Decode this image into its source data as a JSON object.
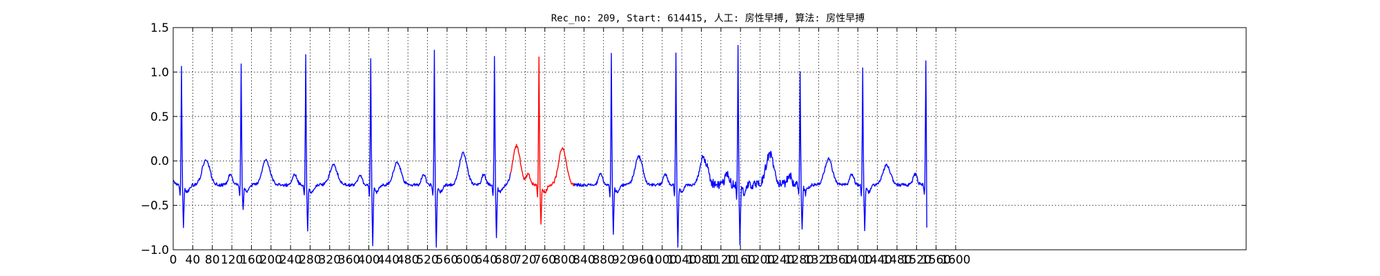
{
  "chart_data": {
    "type": "line",
    "title": "Rec_no: 209, Start: 614415, 人工: 房性早搏, 算法: 房性早搏",
    "xlabel": "",
    "ylabel": "",
    "xlim": [
      0,
      1600
    ],
    "ylim": [
      -1.0,
      1.5
    ],
    "grid": true,
    "yticks": [
      -1.0,
      -0.5,
      0.0,
      0.5,
      1.0,
      1.5
    ],
    "ytick_labels": [
      "−1.0",
      "−0.5",
      "0.0",
      "0.5",
      "1.0",
      "1.5"
    ],
    "xticks": [
      0,
      40,
      80,
      120,
      160,
      200,
      240,
      280,
      320,
      360,
      400,
      440,
      480,
      520,
      560,
      600,
      640,
      680,
      720,
      760,
      800,
      840,
      880,
      920,
      960,
      1000,
      1040,
      1080,
      1120,
      1160,
      1200,
      1240,
      1280,
      1320,
      1360,
      1400,
      1440,
      1480,
      1520,
      1560,
      1600
    ],
    "xtick_labels": [
      "0",
      "40",
      "80",
      "120",
      "160",
      "200",
      "240",
      "280",
      "320",
      "360",
      "400",
      "440",
      "480",
      "520",
      "560",
      "600",
      "640",
      "680",
      "720",
      "760",
      "800",
      "840",
      "880",
      "920",
      "960",
      "1000",
      "1040",
      "1080",
      "1120",
      "1160",
      "1200",
      "1240",
      "1280",
      "1320",
      "1360",
      "1400",
      "1440",
      "1480",
      "1520",
      "1560",
      "1600"
    ],
    "x_tick_max_sample": 1600,
    "series_colors": {
      "normal": "#0000ff",
      "highlight": "#ff0000"
    },
    "beats": [
      {
        "r_x": 17,
        "r_y": 1.05,
        "s_y": -0.75,
        "t_x": 67,
        "t_y": 0.02
      },
      {
        "r_x": 139,
        "r_y": 1.1,
        "s_y": -0.55,
        "t_x": 190,
        "t_y": 0.01
      },
      {
        "r_x": 271,
        "r_y": 1.2,
        "s_y": -0.8,
        "t_x": 328,
        "t_y": -0.05
      },
      {
        "r_x": 404,
        "r_y": 1.16,
        "s_y": -0.95,
        "t_x": 458,
        "t_y": -0.02
      },
      {
        "r_x": 534,
        "r_y": 1.24,
        "s_y": -0.98,
        "t_x": 593,
        "t_y": 0.09
      },
      {
        "r_x": 657,
        "r_y": 1.18,
        "s_y": -0.88,
        "t_x": 702,
        "t_y": 0.17
      },
      {
        "r_x": 748,
        "r_y": 1.17,
        "s_y": -0.72,
        "t_x": 796,
        "t_y": 0.14
      },
      {
        "r_x": 896,
        "r_y": 1.2,
        "s_y": -0.82,
        "t_x": 952,
        "t_y": 0.05
      },
      {
        "r_x": 1028,
        "r_y": 1.2,
        "s_y": -0.97,
        "t_x": 1085,
        "t_y": 0.04
      },
      {
        "r_x": 1155,
        "r_y": 1.25,
        "s_y": -0.9,
        "t_x": 1220,
        "t_y": 0.08
      },
      {
        "r_x": 1282,
        "r_y": 1.02,
        "s_y": -0.8,
        "t_x": 1340,
        "t_y": 0.02
      },
      {
        "r_x": 1410,
        "r_y": 1.05,
        "s_y": -0.8,
        "t_x": 1459,
        "t_y": -0.05
      },
      {
        "r_x": 1539,
        "r_y": 1.14,
        "s_y": -0.75,
        "t_x": null,
        "t_y": null
      }
    ],
    "baseline": -0.27,
    "highlight_range": [
      690,
      820
    ],
    "signal_end_x": 1541,
    "signal_end_y": -0.75
  }
}
